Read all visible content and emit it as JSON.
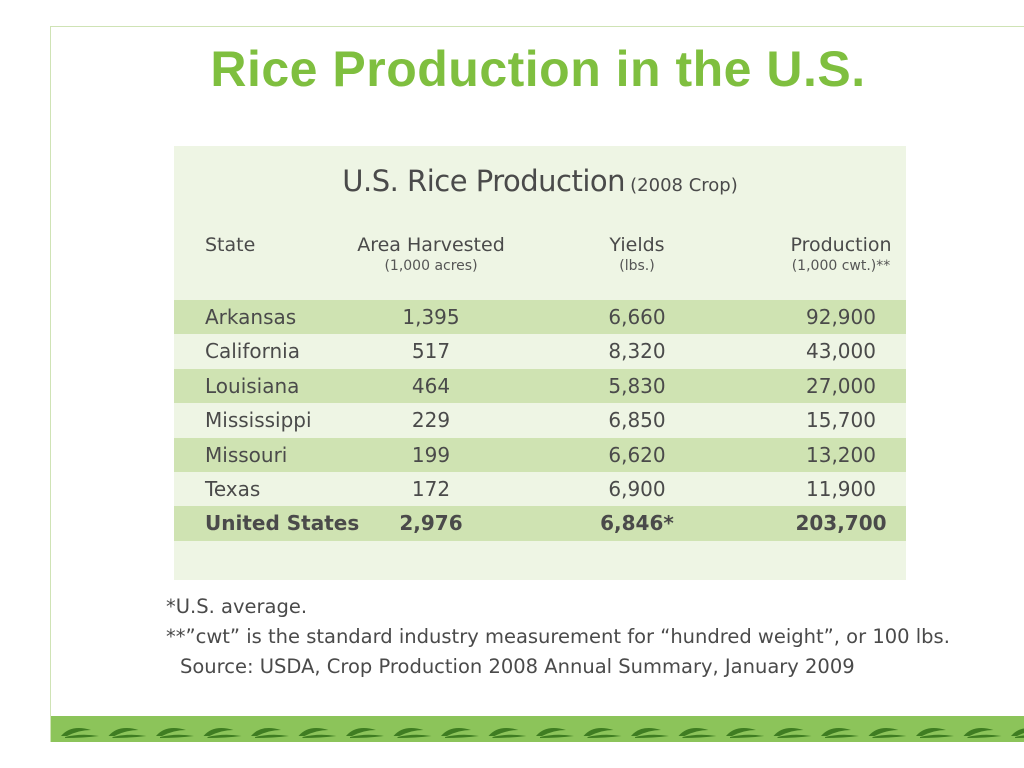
{
  "slide": {
    "title": "Rice Production in the U.S."
  },
  "table": {
    "heading_main": "U.S. Rice Production",
    "heading_sub": "(2008 Crop)",
    "columns": [
      {
        "label": "State",
        "unit": ""
      },
      {
        "label": "Area Harvested",
        "unit": "(1,000 acres)"
      },
      {
        "label": "Yields",
        "unit": "(lbs.)"
      },
      {
        "label": "Production",
        "unit": "(1,000 cwt.)**"
      }
    ],
    "rows": [
      {
        "state": "Arkansas",
        "area": "1,395",
        "yield": "6,660",
        "production": "92,900"
      },
      {
        "state": "California",
        "area": "517",
        "yield": "8,320",
        "production": "43,000"
      },
      {
        "state": "Louisiana",
        "area": "464",
        "yield": "5,830",
        "production": "27,000"
      },
      {
        "state": "Mississippi",
        "area": "229",
        "yield": "6,850",
        "production": "15,700"
      },
      {
        "state": "Missouri",
        "area": "199",
        "yield": "6,620",
        "production": "13,200"
      },
      {
        "state": "Texas",
        "area": "172",
        "yield": "6,900",
        "production": "11,900"
      }
    ],
    "total": {
      "state": "United States",
      "area": "2,976",
      "yield": "6,846*",
      "production": "203,700"
    }
  },
  "notes": {
    "note1": "*U.S. average.",
    "note2": "**”cwt” is the standard industry measurement for “hundred weight”, or 100 lbs.",
    "source": "Source: USDA, Crop Production 2008 Annual Summary, January 2009"
  },
  "colors": {
    "title": "#7fbf3f",
    "panel_bg": "#eef5e4",
    "row_shade": "#cfe3b2",
    "band": "#8cc45a",
    "leaf": "#3f7d22"
  },
  "decoration": {
    "leaf_icon": "rice-leaf-icon"
  }
}
